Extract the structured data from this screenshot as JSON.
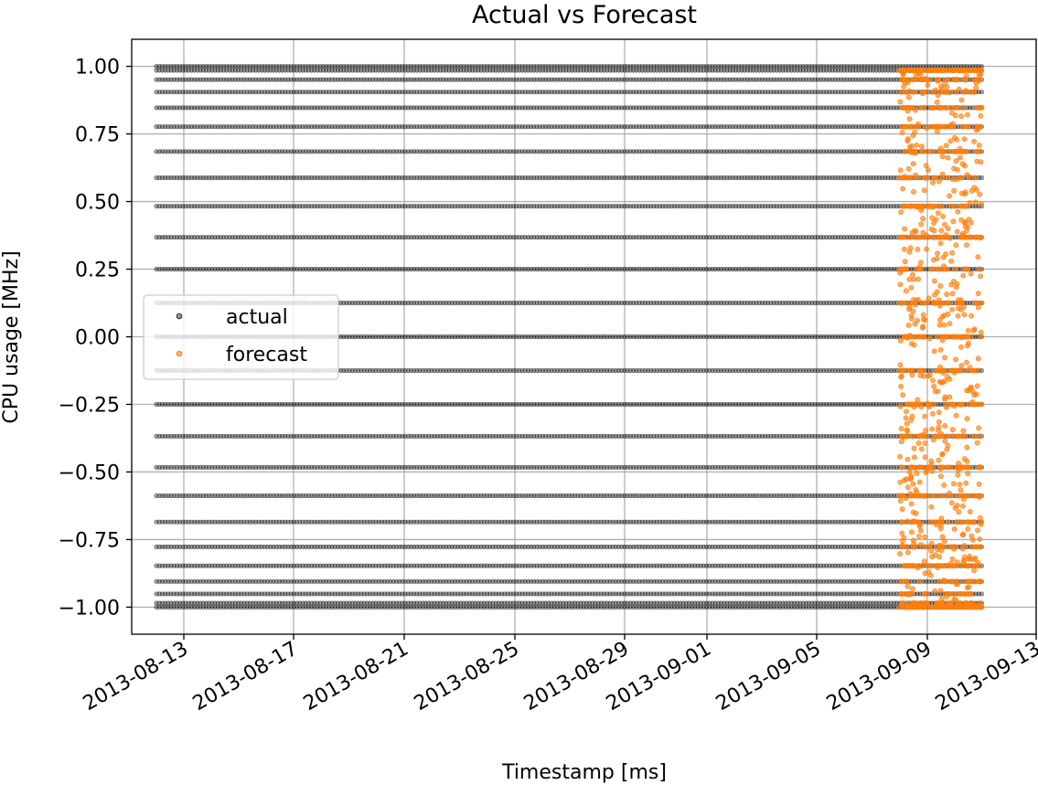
{
  "chart_data": {
    "type": "scatter",
    "title": "Actual vs Forecast",
    "xlabel": "Timestamp [ms]",
    "ylabel": "CPU usage [MHz]",
    "grid": true,
    "legend_position": "center-left",
    "x_tick_labels": [
      "2013-08-13",
      "2013-08-17",
      "2013-08-21",
      "2013-08-25",
      "2013-08-29",
      "2013-09-01",
      "2013-09-05",
      "2013-09-09",
      "2013-09-13"
    ],
    "y_ticks": [
      -1.0,
      -0.75,
      -0.5,
      -0.25,
      0.0,
      0.25,
      0.5,
      0.75,
      1.0
    ],
    "y_tick_labels": [
      "−1.00",
      "−0.75",
      "−0.50",
      "−0.25",
      "0.00",
      "0.25",
      "0.50",
      "0.75",
      "1.00"
    ],
    "ylim": [
      -1.1,
      1.1
    ],
    "xlim": [
      "2013-08-11",
      "2013-09-13"
    ],
    "series": [
      {
        "name": "actual",
        "color": "#000000",
        "x_range": [
          "2013-08-12",
          "2013-09-11"
        ],
        "y_levels": [
          -1.0,
          -0.985,
          -0.951,
          -0.905,
          -0.847,
          -0.777,
          -0.685,
          -0.588,
          -0.483,
          -0.368,
          -0.25,
          -0.125,
          0.0,
          0.125,
          0.25,
          0.368,
          0.483,
          0.588,
          0.685,
          0.777,
          0.847,
          0.905,
          0.951,
          0.985,
          1.0
        ]
      },
      {
        "name": "forecast",
        "color": "#ff7f0e",
        "x_range": [
          "2013-09-08",
          "2013-09-11"
        ],
        "y_range": [
          -1.0,
          0.985
        ]
      }
    ]
  }
}
